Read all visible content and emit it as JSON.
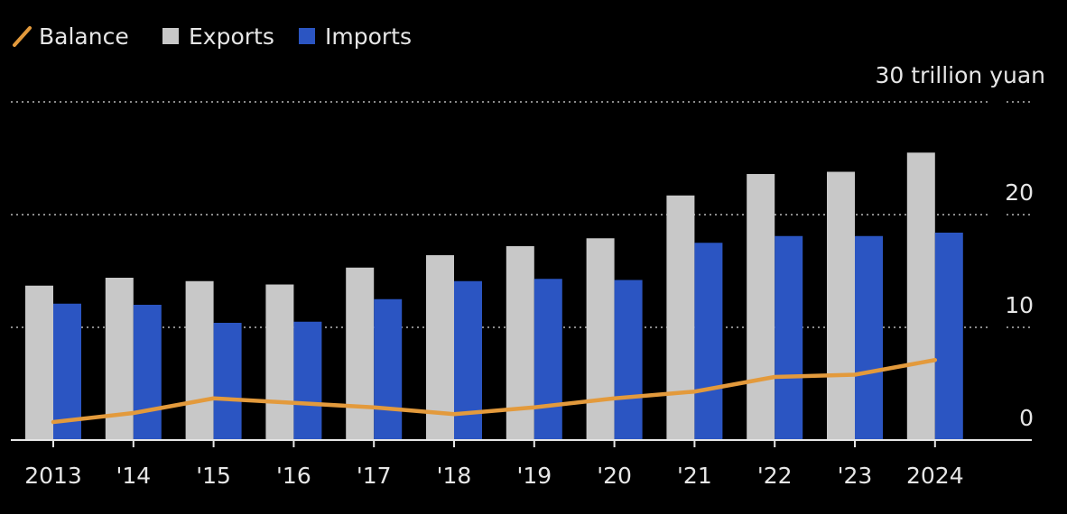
{
  "chart_data": {
    "type": "bar",
    "categories": [
      "2013",
      "'14",
      "'15",
      "'16",
      "'17",
      "'18",
      "'19",
      "'20",
      "'21",
      "'22",
      "'23",
      "2024"
    ],
    "series": [
      {
        "name": "Exports",
        "type": "bar",
        "color": "#c8c8c8",
        "values": [
          13.7,
          14.4,
          14.1,
          13.8,
          15.3,
          16.4,
          17.2,
          17.9,
          21.7,
          23.6,
          23.8,
          25.5
        ]
      },
      {
        "name": "Imports",
        "type": "bar",
        "color": "#2b55c2",
        "values": [
          12.1,
          12.0,
          10.4,
          10.5,
          12.5,
          14.1,
          14.3,
          14.2,
          17.5,
          18.1,
          18.1,
          18.4
        ]
      },
      {
        "name": "Balance",
        "type": "line",
        "color": "#e39a3c",
        "values": [
          1.6,
          2.4,
          3.7,
          3.3,
          2.9,
          2.3,
          2.9,
          3.7,
          4.3,
          5.6,
          5.8,
          7.1
        ]
      }
    ],
    "legend": [
      {
        "label": "Balance",
        "marker": "line",
        "color": "#e39a3c"
      },
      {
        "label": "Exports",
        "marker": "square",
        "color": "#c8c8c8"
      },
      {
        "label": "Imports",
        "marker": "square",
        "color": "#2b55c2"
      }
    ],
    "legend_position": "top-left",
    "y_unit_label": "30 trillion yuan",
    "y_ticks": [
      {
        "value": 0,
        "label": "0"
      },
      {
        "value": 10,
        "label": "10"
      },
      {
        "value": 20,
        "label": "20"
      }
    ],
    "ylim": [
      0,
      30
    ],
    "grid": true,
    "title": "",
    "xlabel": "",
    "ylabel": ""
  }
}
